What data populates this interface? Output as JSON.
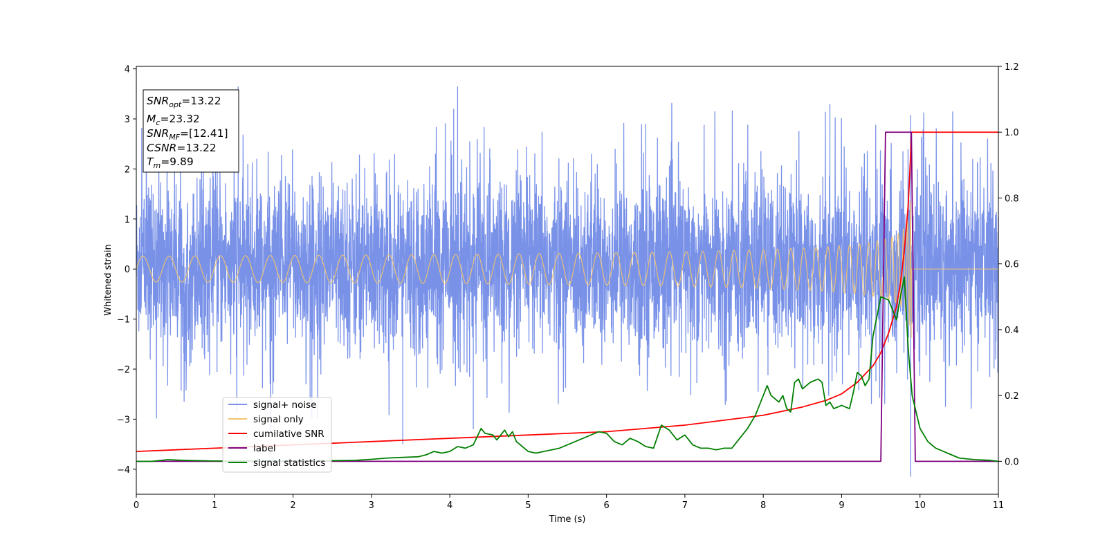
{
  "chart_data": {
    "type": "line",
    "xlabel": "Time (s)",
    "ylabel": "Whitened strain",
    "xlim": [
      0,
      11
    ],
    "ylim": [
      -4.5,
      4.05
    ],
    "y2lim": [
      -0.1,
      1.2
    ],
    "x_ticks": [
      "0",
      "1",
      "2",
      "3",
      "4",
      "5",
      "6",
      "7",
      "8",
      "9",
      "10",
      "11"
    ],
    "y_ticks": [
      "4",
      "3",
      "2",
      "1",
      "0",
      "−1",
      "−2",
      "−3",
      "−4"
    ],
    "y2_ticks": [
      "1.2",
      "1.0",
      "0.8",
      "0.6",
      "0.4",
      "0.2",
      "0.0"
    ],
    "grid": false,
    "legend_position": "lower-left",
    "legend": [
      {
        "label": "signal+ noise",
        "color": "#7992e8"
      },
      {
        "label": "signal only",
        "color": "#f4c46c"
      },
      {
        "label": "cumilative SNR",
        "color": "#ff0000"
      },
      {
        "label": "label",
        "color": "#800080"
      },
      {
        "label": "signal statistics",
        "color": "#007f00"
      }
    ],
    "info_box": {
      "snr_opt": {
        "base": "SNR",
        "sub": "opt",
        "rest": "=13.22"
      },
      "mc": {
        "base": "M",
        "sub": "c",
        "rest": "=23.32"
      },
      "snr_mf": {
        "base": "SNR",
        "sub": "MF",
        "rest": "=[12.41]"
      },
      "csnr": {
        "base": "CSNR",
        "sub": "",
        "rest": "=13.22"
      },
      "tm": {
        "base": "T",
        "sub": "m",
        "rest": "=9.89"
      }
    },
    "series": [
      {
        "name": "signal+ noise",
        "axis": "left",
        "style": "noise",
        "color": "#7992e8",
        "x_range": [
          0,
          11
        ],
        "typical_range": [
          -1.9,
          2.1
        ],
        "peak_range": [
          -4.15,
          3.65
        ],
        "peaks": [
          [
            1.3,
            3.65
          ],
          [
            4.1,
            3.65
          ],
          [
            3.4,
            -3.5
          ],
          [
            4.05,
            3.2
          ],
          [
            8.85,
            3.3
          ],
          [
            9.88,
            -4.15
          ],
          [
            9.88,
            3.08
          ],
          [
            6.5,
            2.9
          ],
          [
            9.55,
            -2.7
          ],
          [
            4.3,
            -3.2
          ]
        ]
      },
      {
        "name": "signal only",
        "axis": "left",
        "style": "chirp",
        "color": "#f4c46c",
        "x_range": [
          0,
          11
        ],
        "merger_time": 9.89,
        "peak_amplitude": 1.45
      },
      {
        "name": "cumilative SNR",
        "axis": "right",
        "color": "#ff0000",
        "x": [
          0,
          1,
          2,
          3,
          4,
          5,
          6,
          7,
          7.5,
          8,
          8.5,
          8.8,
          9.0,
          9.2,
          9.4,
          9.5,
          9.6,
          9.7,
          9.75,
          9.8,
          9.85,
          9.88,
          9.89,
          11
        ],
        "y": [
          0.03,
          0.04,
          0.05,
          0.06,
          0.07,
          0.08,
          0.09,
          0.11,
          0.125,
          0.14,
          0.165,
          0.185,
          0.205,
          0.24,
          0.29,
          0.33,
          0.39,
          0.47,
          0.54,
          0.64,
          0.78,
          0.93,
          1.0,
          1.0
        ]
      },
      {
        "name": "label",
        "axis": "right",
        "color": "#800080",
        "x": [
          0,
          9.5,
          9.56,
          9.89,
          9.94,
          11
        ],
        "y": [
          0,
          0,
          1.0,
          1.0,
          0,
          0
        ]
      },
      {
        "name": "signal statistics",
        "axis": "right",
        "color": "#007f00",
        "x": [
          0,
          0.2,
          0.4,
          0.6,
          0.8,
          1.0,
          1.5,
          2.0,
          2.5,
          2.8,
          3.0,
          3.2,
          3.4,
          3.6,
          3.7,
          3.8,
          3.9,
          4.0,
          4.1,
          4.2,
          4.3,
          4.4,
          4.45,
          4.55,
          4.6,
          4.7,
          4.75,
          4.8,
          4.85,
          4.9,
          5.0,
          5.1,
          5.2,
          5.3,
          5.4,
          5.5,
          5.6,
          5.7,
          5.8,
          5.9,
          6.0,
          6.1,
          6.2,
          6.3,
          6.4,
          6.5,
          6.6,
          6.7,
          6.8,
          6.85,
          6.9,
          7.0,
          7.1,
          7.2,
          7.3,
          7.4,
          7.5,
          7.6,
          7.7,
          7.8,
          7.9,
          8.0,
          8.05,
          8.1,
          8.2,
          8.25,
          8.3,
          8.35,
          8.4,
          8.45,
          8.5,
          8.55,
          8.6,
          8.7,
          8.75,
          8.8,
          8.85,
          8.9,
          9.0,
          9.1,
          9.15,
          9.2,
          9.25,
          9.3,
          9.35,
          9.4,
          9.45,
          9.5,
          9.6,
          9.7,
          9.75,
          9.8,
          9.85,
          9.9,
          9.95,
          10.0,
          10.1,
          10.2,
          10.3,
          10.4,
          10.5,
          10.7,
          10.9,
          11.0
        ],
        "y": [
          0.0,
          0.0,
          0.005,
          0.003,
          0.002,
          0.001,
          0.001,
          0.001,
          0.002,
          0.003,
          0.006,
          0.01,
          0.012,
          0.014,
          0.02,
          0.03,
          0.025,
          0.03,
          0.045,
          0.04,
          0.05,
          0.1,
          0.085,
          0.08,
          0.065,
          0.095,
          0.075,
          0.09,
          0.06,
          0.05,
          0.03,
          0.025,
          0.03,
          0.035,
          0.04,
          0.05,
          0.06,
          0.07,
          0.08,
          0.09,
          0.085,
          0.06,
          0.05,
          0.07,
          0.06,
          0.045,
          0.04,
          0.11,
          0.095,
          0.08,
          0.065,
          0.08,
          0.05,
          0.04,
          0.04,
          0.035,
          0.04,
          0.04,
          0.07,
          0.1,
          0.14,
          0.2,
          0.23,
          0.2,
          0.18,
          0.2,
          0.16,
          0.15,
          0.24,
          0.25,
          0.22,
          0.23,
          0.24,
          0.25,
          0.24,
          0.17,
          0.18,
          0.16,
          0.17,
          0.16,
          0.21,
          0.27,
          0.26,
          0.23,
          0.25,
          0.38,
          0.44,
          0.5,
          0.49,
          0.43,
          0.5,
          0.56,
          0.34,
          0.2,
          0.15,
          0.1,
          0.06,
          0.04,
          0.03,
          0.02,
          0.01,
          0.005,
          0.003,
          0.0
        ]
      }
    ]
  }
}
